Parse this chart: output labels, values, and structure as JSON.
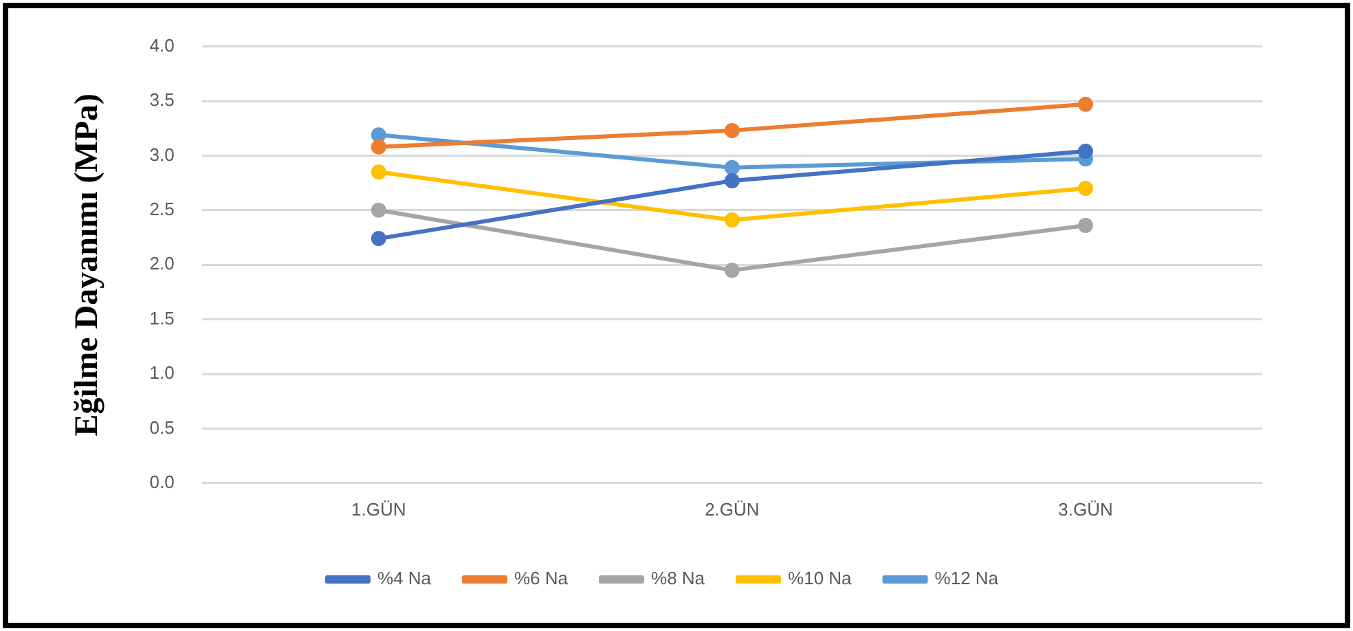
{
  "chart_data": {
    "type": "line",
    "ylabel": "Eğilme Dayanımı (MPa)",
    "categories": [
      "1.GÜN",
      "2.GÜN",
      "3.GÜN"
    ],
    "series": [
      {
        "name": "%4 Na",
        "color": "#4472c4",
        "values": [
          2.24,
          2.77,
          3.04
        ]
      },
      {
        "name": "%6 Na",
        "color": "#ed7d31",
        "values": [
          3.08,
          3.23,
          3.47
        ]
      },
      {
        "name": "%8 Na",
        "color": "#a5a5a5",
        "values": [
          2.5,
          1.95,
          2.36
        ]
      },
      {
        "name": "%10 Na",
        "color": "#ffc000",
        "values": [
          2.85,
          2.41,
          2.7
        ]
      },
      {
        "name": "%12 Na",
        "color": "#5b9bd5",
        "values": [
          3.19,
          2.89,
          2.97
        ]
      }
    ],
    "ylim": [
      0,
      4
    ],
    "yticks": [
      {
        "value": 0,
        "label": "0.0"
      },
      {
        "value": 0.5,
        "label": "0.5"
      },
      {
        "value": 1,
        "label": "1.0"
      },
      {
        "value": 1.5,
        "label": "1.5"
      },
      {
        "value": 2,
        "label": "2.0"
      },
      {
        "value": 2.5,
        "label": "2.5"
      },
      {
        "value": 3,
        "label": "3.0"
      },
      {
        "value": 3.5,
        "label": "3.5"
      },
      {
        "value": 4,
        "label": "4.0"
      }
    ],
    "grid": "y",
    "legend": "bottom",
    "marker": "circle"
  }
}
